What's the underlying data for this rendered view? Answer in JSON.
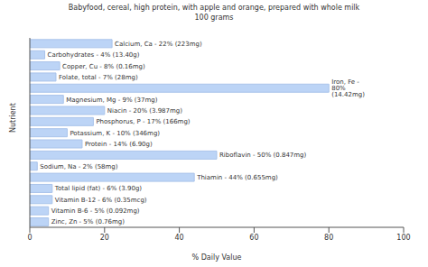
{
  "chart_data": {
    "type": "bar",
    "orientation": "horizontal",
    "title": "Babyfood, cereal, high protein, with apple and orange, prepared with whole milk",
    "subtitle": "100 grams",
    "x_label": "% Daily Value",
    "y_label": "Nutrient",
    "categories": [
      "Calcium, Ca - 22% (223mg)",
      "Carbohydrates - 4% (13.40g)",
      "Copper, Cu - 8% (0.16mg)",
      "Folate, total - 7% (28mg)",
      "Iron, Fe - 80% (14.42mg)",
      "Magnesium, Mg - 9% (37mg)",
      "Niacin - 20% (3.987mg)",
      "Phosphorus, P - 17% (166mg)",
      "Potassium, K - 10% (346mg)",
      "Protein - 14% (6.90g)",
      "Riboflavin - 50% (0.847mg)",
      "Sodium, Na - 2% (58mg)",
      "Thiamin - 44% (0.655mg)",
      "Total lipid (fat) - 6% (3.90g)",
      "Vitamin B-12 - 6% (0.35mcg)",
      "Vitamin B-6 - 5% (0.092mg)",
      "Zinc, Zn - 5% (0.76mg)"
    ],
    "values": [
      22,
      4,
      8,
      7,
      80,
      9,
      20,
      17,
      10,
      14,
      50,
      2,
      44,
      6,
      6,
      5,
      5
    ],
    "color": "#bcd4f6",
    "xlim": [
      0,
      100
    ],
    "xticks": [
      0,
      20,
      40,
      60,
      80,
      100
    ],
    "grid": false,
    "tick_labels": "x"
  }
}
